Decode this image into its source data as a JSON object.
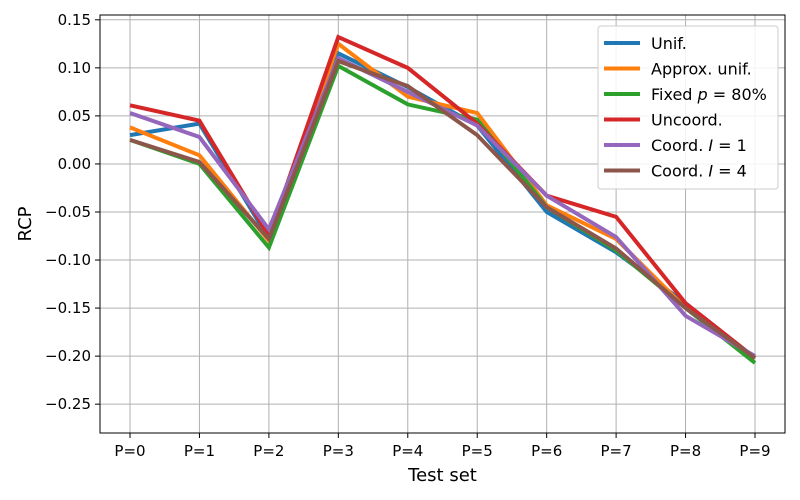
{
  "chart_data": {
    "type": "line",
    "title": "",
    "xlabel": "Test set",
    "ylabel": "RCP",
    "categories": [
      "P=0",
      "P=1",
      "P=2",
      "P=3",
      "P=4",
      "P=5",
      "P=6",
      "P=7",
      "P=8",
      "P=9"
    ],
    "ylim": [
      -0.28,
      0.155
    ],
    "yticks": [
      0.15,
      0.1,
      0.05,
      0.0,
      -0.05,
      -0.1,
      -0.15,
      -0.2,
      -0.25
    ],
    "ytick_labels": [
      "0.15",
      "0.10",
      "0.05",
      "0.00",
      "−0.05",
      "−0.10",
      "−0.15",
      "−0.20",
      "−0.25"
    ],
    "grid": true,
    "legend_position": "top-right",
    "series": [
      {
        "name": "Unif.",
        "legend": [
          "Unif."
        ],
        "color": "#1f77b4",
        "values": [
          0.03,
          0.042,
          -0.078,
          0.115,
          0.08,
          0.04,
          -0.05,
          -0.092,
          -0.145,
          -0.202
        ]
      },
      {
        "name": "Approx. unif.",
        "legend": [
          "Approx. unif."
        ],
        "color": "#ff7f0e",
        "values": [
          0.038,
          0.009,
          -0.08,
          0.125,
          0.07,
          0.053,
          -0.043,
          -0.078,
          -0.15,
          -0.202
        ]
      },
      {
        "name": "Fixed p = 80%",
        "legend": [
          "Fixed ",
          "p",
          " = 80%"
        ],
        "color": "#2ca02c",
        "values": [
          0.025,
          0.0,
          -0.087,
          0.102,
          0.062,
          0.046,
          -0.045,
          -0.09,
          -0.15,
          -0.207
        ]
      },
      {
        "name": "Uncoord.",
        "legend": [
          "Uncoord."
        ],
        "color": "#d62728",
        "values": [
          0.061,
          0.045,
          -0.075,
          0.132,
          0.1,
          0.042,
          -0.033,
          -0.055,
          -0.145,
          -0.202
        ]
      },
      {
        "name": "Coord. I = 1",
        "legend": [
          "Coord. ",
          "I",
          " = 1"
        ],
        "color": "#9467bd",
        "values": [
          0.053,
          0.028,
          -0.068,
          0.11,
          0.075,
          0.04,
          -0.033,
          -0.076,
          -0.158,
          -0.2
        ]
      },
      {
        "name": "Coord. I = 4",
        "legend": [
          "Coord. ",
          "I",
          " = 4"
        ],
        "color": "#8c564b",
        "values": [
          0.025,
          0.002,
          -0.078,
          0.107,
          0.081,
          0.03,
          -0.045,
          -0.088,
          -0.15,
          -0.202
        ]
      }
    ]
  }
}
